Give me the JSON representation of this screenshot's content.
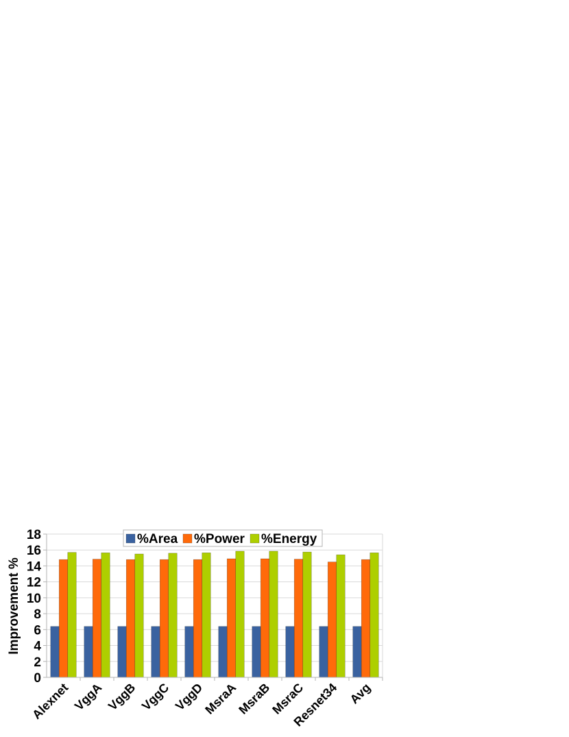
{
  "chart_data": {
    "type": "bar",
    "title": "",
    "xlabel": "",
    "ylabel": "Improvement %",
    "ylim": [
      0,
      18
    ],
    "ytick_step": 2,
    "grid": true,
    "legend_position": "top-center",
    "categories": [
      "Alexnet",
      "VggA",
      "VggB",
      "VggC",
      "VggD",
      "MsraA",
      "MsraB",
      "MsraC",
      "Resnet34",
      "Avg"
    ],
    "series": [
      {
        "name": "%Area",
        "color": "#3a62a0",
        "values": [
          6.4,
          6.4,
          6.4,
          6.4,
          6.4,
          6.4,
          6.4,
          6.4,
          6.4,
          6.4
        ]
      },
      {
        "name": "%Power",
        "color": "#ff6a0a",
        "values": [
          14.8,
          14.85,
          14.8,
          14.8,
          14.8,
          14.9,
          14.9,
          14.85,
          14.5,
          14.8
        ]
      },
      {
        "name": "%Energy",
        "color": "#aecf00",
        "values": [
          15.7,
          15.65,
          15.5,
          15.6,
          15.65,
          15.85,
          15.85,
          15.75,
          15.4,
          15.65
        ]
      }
    ]
  }
}
